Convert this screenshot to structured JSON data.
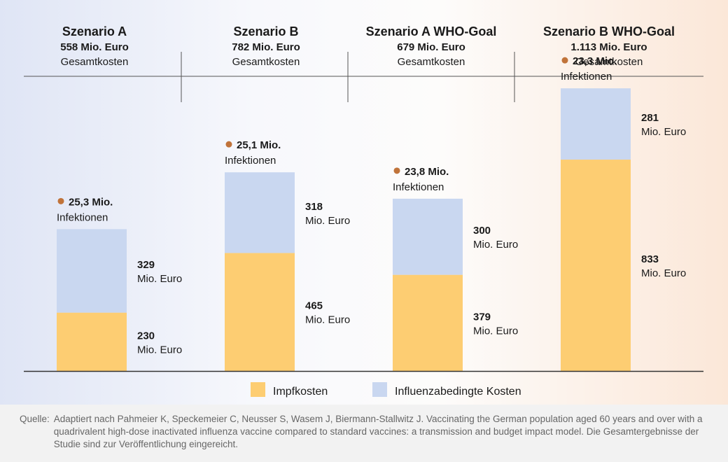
{
  "colors": {
    "impf": "#fdcd72",
    "influenza": "#c9d7f0",
    "dot": "#c0733a",
    "axis": "#333333",
    "divider": "#555555"
  },
  "chart_data": {
    "type": "bar",
    "stacked": true,
    "categories": [
      "Szenario A",
      "Szenario B",
      "Szenario A WHO-Goal",
      "Szenario B WHO-Goal"
    ],
    "series": [
      {
        "name": "Impfkosten",
        "values": [
          230,
          465,
          379,
          833
        ]
      },
      {
        "name": "Influenzabedingte Kosten",
        "values": [
          329,
          318,
          300,
          281
        ]
      }
    ],
    "unit": "Mio. Euro",
    "scenarios": [
      {
        "title": "Szenario A",
        "total": "558 Mio. Euro",
        "total_label": "Gesamtkosten",
        "infections": "25,3 Mio.",
        "infections_label": "Infektionen",
        "impf": "230",
        "influenza": "329"
      },
      {
        "title": "Szenario B",
        "total": "782 Mio. Euro",
        "total_label": "Gesamtkosten",
        "infections": "25,1 Mio.",
        "infections_label": "Infektionen",
        "impf": "465",
        "influenza": "318"
      },
      {
        "title": "Szenario A WHO-Goal",
        "total": "679 Mio. Euro",
        "total_label": "Gesamtkosten",
        "infections": "23,8 Mio.",
        "infections_label": "Infektionen",
        "impf": "379",
        "influenza": "300"
      },
      {
        "title": "Szenario B WHO-Goal",
        "total": "1.113 Mio. Euro",
        "total_label": "Gesamtkosten",
        "infections": "23,3 Mio.",
        "infections_label": "Infektionen",
        "impf": "833",
        "influenza": "281"
      }
    ],
    "legend": [
      "Impfkosten",
      "Influenzabedingte Kosten"
    ],
    "legend_position": "bottom"
  },
  "source": {
    "label": "Quelle:",
    "text": "Adaptiert nach Pahmeier K, Speckemeier C, Neusser S, Wasem J, Biermann-Stallwitz J. Vaccinating the German population aged 60 years and over with a quadrivalent high-dose inactivated influenza vaccine compared to standard vaccines: a transmission and budget impact model. Die Gesamtergebnisse der Studie sind zur Veröffentlichung eingereicht."
  }
}
